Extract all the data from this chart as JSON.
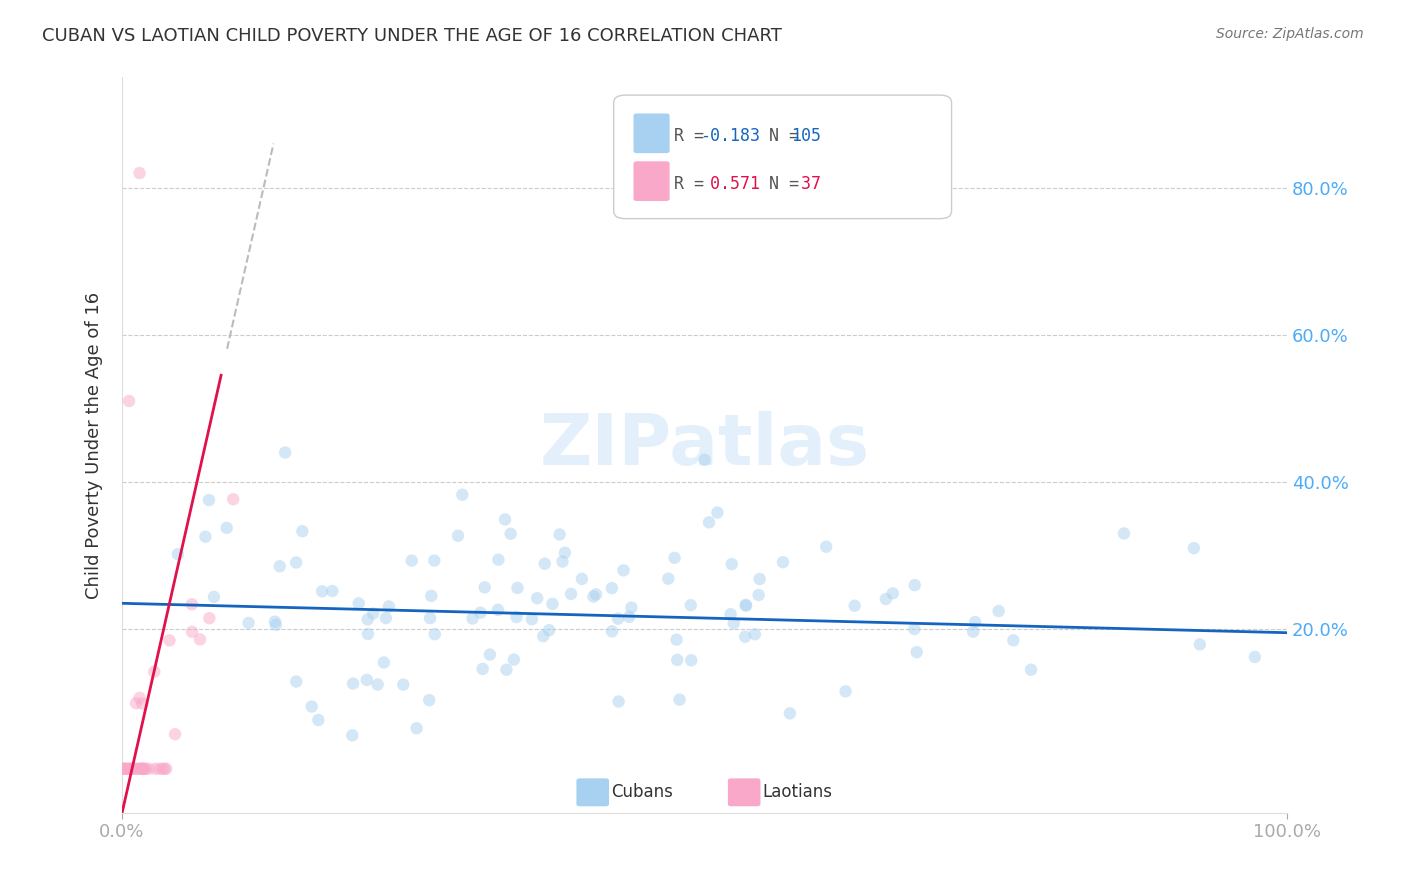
{
  "title": "CUBAN VS LAOTIAN CHILD POVERTY UNDER THE AGE OF 16 CORRELATION CHART",
  "source": "Source: ZipAtlas.com",
  "ylabel": "Child Poverty Under the Age of 16",
  "watermark": "ZIPatlas",
  "cuban_color": "#a8d0f0",
  "laotian_color": "#f9a8c9",
  "cuban_line_color": "#1565c0",
  "laotian_line_color": "#e0114b",
  "laotian_dashed_color": "#bbbbbb",
  "background_color": "#ffffff",
  "grid_color": "#cccccc",
  "title_color": "#333333",
  "tick_label_color": "#4dabf7",
  "legend_text_color_blue": "#1565c0",
  "legend_text_color_pink": "#e0114b",
  "marker_size": 80,
  "marker_alpha": 0.5,
  "cuban_trend_slope": -0.04,
  "cuban_trend_intercept": 0.235,
  "laotian_trend_slope": 7.0,
  "laotian_trend_intercept": -0.05
}
